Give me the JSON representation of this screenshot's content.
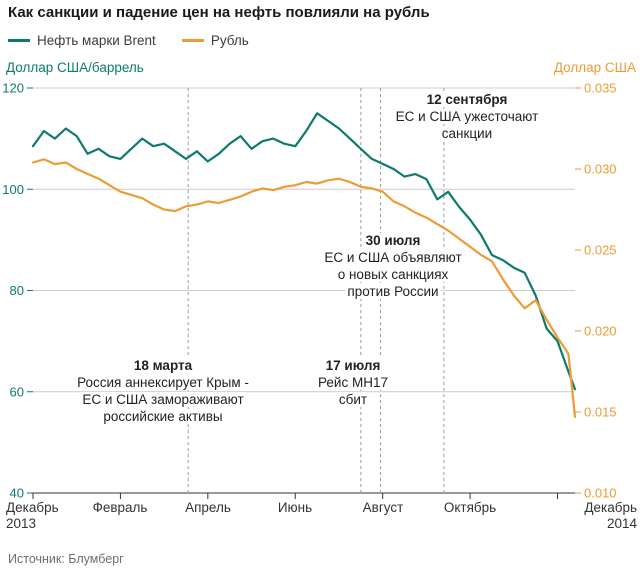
{
  "title": "Как санкции и падение цен на нефть повлияли на рубль",
  "source": "Источник: Блумберг",
  "legend": [
    {
      "label": "Нефть марки Brent",
      "color": "#0E7A6E"
    },
    {
      "label": "Рубль",
      "color": "#ED9C33"
    }
  ],
  "axes": {
    "left_title": "Доллар США/баррель",
    "right_title": "Доллар США",
    "left_color": "#0E7A6E",
    "right_color": "#ED9C33",
    "left_ticks": [
      "120",
      "100",
      "80",
      "60",
      "40"
    ],
    "right_ticks": [
      "0.035",
      "0.030",
      "0.025",
      "0.020",
      "0.015",
      "0.010"
    ]
  },
  "x_ticks": [
    {
      "label": "Декабрь",
      "sublabel": "2013",
      "month": 0
    },
    {
      "label": "Февраль",
      "sublabel": "",
      "month": 2
    },
    {
      "label": "Апрель",
      "sublabel": "",
      "month": 4
    },
    {
      "label": "Июнь",
      "sublabel": "",
      "month": 6
    },
    {
      "label": "Август",
      "sublabel": "",
      "month": 8
    },
    {
      "label": "Октябрь",
      "sublabel": "",
      "month": 10
    },
    {
      "label": "Декабрь",
      "sublabel": "2014",
      "month": 12
    }
  ],
  "annotations": [
    {
      "date": "18 марта",
      "lines": [
        "Россия аннексирует Крым -",
        "ЕС и США замораживают",
        "российские активы"
      ]
    },
    {
      "date": "17 июля",
      "lines": [
        "Рейс MH17",
        "сбит"
      ]
    },
    {
      "date": "30 июля",
      "lines": [
        "ЕС и США объявляют",
        "о новых санкциях",
        "против России"
      ]
    },
    {
      "date": "12 сентября",
      "lines": [
        "ЕС и США ужесточают",
        "санкции"
      ]
    }
  ],
  "chart_data": {
    "type": "line",
    "title": "Как санкции и падение цен на нефть повлияли на рубль",
    "x_unit": "months since 1 Dec 2013",
    "xlim": [
      0,
      12.4
    ],
    "left_ylim": [
      40,
      120
    ],
    "right_ylim": [
      0.01,
      0.035
    ],
    "grid": true,
    "legend_position": "top",
    "event_lines_months": [
      3.55,
      7.5,
      7.95,
      9.4
    ],
    "x": [
      0,
      0.25,
      0.5,
      0.75,
      1,
      1.25,
      1.5,
      1.75,
      2,
      2.25,
      2.5,
      2.75,
      3,
      3.25,
      3.5,
      3.75,
      4,
      4.25,
      4.5,
      4.75,
      5,
      5.25,
      5.5,
      5.75,
      6,
      6.25,
      6.5,
      6.75,
      7,
      7.25,
      7.5,
      7.75,
      8,
      8.25,
      8.5,
      8.75,
      9,
      9.25,
      9.5,
      9.75,
      10,
      10.25,
      10.5,
      10.75,
      11,
      11.25,
      11.5,
      11.75,
      12,
      12.25,
      12.4
    ],
    "series": [
      {
        "name": "Нефть марки Brent",
        "axis": "left",
        "color": "#0E7A6E",
        "unit": "USD/barrel",
        "values": [
          108.5,
          111.5,
          110.0,
          112.0,
          110.5,
          107.0,
          108.0,
          106.5,
          106.0,
          108.0,
          110.0,
          108.5,
          109.0,
          107.5,
          106.0,
          107.5,
          105.5,
          107.0,
          109.0,
          110.5,
          108.0,
          109.5,
          110.0,
          109.0,
          108.5,
          111.5,
          115.0,
          113.5,
          112.0,
          110.0,
          108.0,
          106.0,
          105.0,
          104.0,
          102.5,
          103.0,
          102.0,
          98.0,
          99.5,
          96.5,
          94.0,
          91.0,
          87.0,
          86.0,
          84.5,
          83.5,
          79.0,
          72.5,
          70.0,
          64.0,
          60.5
        ]
      },
      {
        "name": "Рубль",
        "axis": "right",
        "color": "#ED9C33",
        "unit": "USD per RUB",
        "values": [
          0.0304,
          0.0306,
          0.0303,
          0.0304,
          0.03,
          0.0297,
          0.0294,
          0.029,
          0.0286,
          0.0284,
          0.0282,
          0.0278,
          0.0275,
          0.0274,
          0.0277,
          0.0278,
          0.028,
          0.0279,
          0.0281,
          0.0283,
          0.0286,
          0.0288,
          0.0287,
          0.0289,
          0.029,
          0.0292,
          0.0291,
          0.0293,
          0.0294,
          0.0292,
          0.0289,
          0.0288,
          0.0286,
          0.028,
          0.0277,
          0.0273,
          0.027,
          0.0266,
          0.0262,
          0.0257,
          0.0252,
          0.0247,
          0.0243,
          0.0232,
          0.0222,
          0.0214,
          0.0219,
          0.0207,
          0.0196,
          0.0186,
          0.0147
        ]
      }
    ]
  }
}
